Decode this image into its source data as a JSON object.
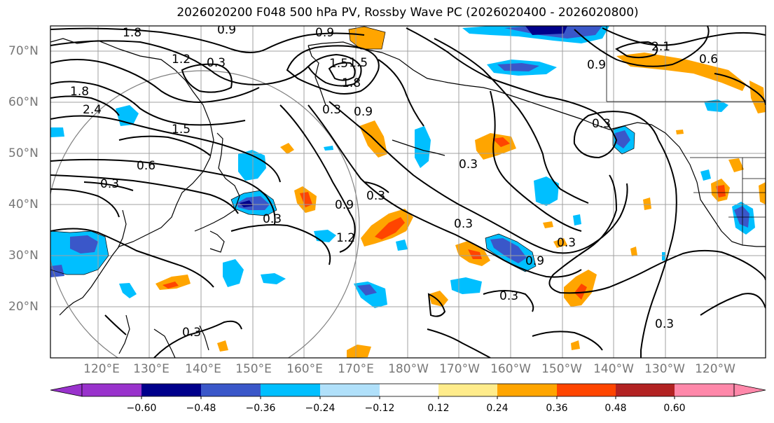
{
  "title": "2026020200 F048 500 hPa PV, Rossby Wave PC (2026020400 - 2026020800)",
  "lon_labels": [
    "120°E",
    "130°E",
    "140°E",
    "150°E",
    "160°E",
    "170°E",
    "180°W",
    "170°W",
    "160°W",
    "150°W",
    "140°W",
    "130°W",
    "120°W"
  ],
  "lat_labels": [
    "70°N",
    "60°N",
    "50°N",
    "40°N",
    "30°N",
    "20°N"
  ],
  "colorbar": {
    "colors": [
      "#9932cc",
      "#00008b",
      "#3a57c9",
      "#00bfff",
      "#b0e0fa",
      "#ffffff",
      "#ffec8b",
      "#ffa500",
      "#ff4500",
      "#b22222",
      "#ff88aa"
    ],
    "ticks": [
      "−0.60",
      "−0.48",
      "−0.36",
      "−0.24",
      "−0.12",
      "0.12",
      "0.24",
      "0.36",
      "0.48",
      "0.60"
    ]
  },
  "contour_labels": [
    "1.8",
    "0.9",
    "1.2",
    "0.3",
    "0.9",
    "1.5",
    "1.8",
    "0.9",
    "0.3",
    "2.1",
    "0.6",
    "1.8",
    "2.4",
    "1.5",
    "0.6",
    "0.3",
    "0.3",
    "0.9",
    "0.3",
    "1.2",
    "0.3",
    "0.3",
    "0.3",
    "0.9",
    "0.3",
    "0.3",
    "0.3",
    "0.3",
    "0.9",
    "1.5"
  ]
}
